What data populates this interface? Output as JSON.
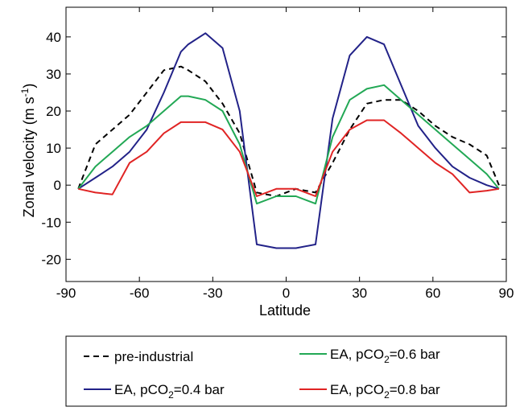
{
  "chart_data": {
    "type": "line",
    "xlabel": "Latitude",
    "ylabel_main": "Zonal velocity (m s",
    "ylabel_sup": "-1",
    "ylabel_close": ")",
    "xlim": [
      -90,
      90
    ],
    "ylim": [
      -26,
      48
    ],
    "xticks": [
      -90,
      -60,
      -30,
      0,
      30,
      60,
      90
    ],
    "yticks": [
      -20,
      -10,
      0,
      10,
      20,
      30,
      40
    ],
    "grid": false,
    "legend_position": "below",
    "series": [
      {
        "name": "pre-industrial",
        "color": "#000000",
        "dash": true,
        "x": [
          -85,
          -78,
          -71,
          -64,
          -57,
          -50,
          -43,
          -40,
          -33,
          -26,
          -19,
          -12,
          -4,
          4,
          12,
          19,
          26,
          33,
          40,
          47,
          54,
          61,
          68,
          75,
          82,
          87
        ],
        "y": [
          -1,
          11,
          15,
          19,
          25,
          31,
          32,
          31,
          28,
          22,
          14,
          -2,
          -3,
          -1,
          -2,
          6,
          15,
          22,
          23,
          23,
          20,
          16,
          13,
          11,
          8,
          0
        ]
      },
      {
        "name": "EA, pCO2=0.4 bar",
        "name_prefix": "EA, pCO",
        "name_sub": "2",
        "name_suffix": "=0.4 bar",
        "color": "#222288",
        "dash": false,
        "x": [
          -85,
          -78,
          -71,
          -64,
          -57,
          -50,
          -43,
          -40,
          -33,
          -26,
          -19,
          -12,
          -4,
          4,
          12,
          19,
          26,
          33,
          40,
          47,
          54,
          61,
          68,
          75,
          82,
          87
        ],
        "y": [
          -1,
          2,
          5,
          9,
          15,
          25,
          36,
          38,
          41,
          37,
          20,
          -16,
          -17,
          -17,
          -16,
          18,
          35,
          40,
          38,
          27,
          16,
          10,
          5,
          2,
          0,
          -1
        ]
      },
      {
        "name": "EA, pCO2=0.6 bar",
        "name_prefix": "EA, pCO",
        "name_sub": "2",
        "name_suffix": "=0.6 bar",
        "color": "#22a855",
        "dash": false,
        "x": [
          -85,
          -78,
          -71,
          -64,
          -57,
          -50,
          -43,
          -40,
          -33,
          -26,
          -19,
          -12,
          -4,
          4,
          12,
          19,
          26,
          33,
          40,
          47,
          54,
          61,
          68,
          75,
          82,
          87
        ],
        "y": [
          -1,
          5,
          9,
          13,
          16,
          20,
          24,
          24,
          23,
          20,
          11,
          -5,
          -3,
          -3,
          -5,
          13,
          23,
          26,
          27,
          23,
          19,
          15,
          11,
          7,
          3,
          -1
        ]
      },
      {
        "name": "EA, pCO2=0.8 bar",
        "name_prefix": "EA, pCO",
        "name_sub": "2",
        "name_suffix": "=0.8 bar",
        "color": "#e02424",
        "dash": false,
        "x": [
          -85,
          -78,
          -71,
          -64,
          -57,
          -50,
          -43,
          -40,
          -33,
          -26,
          -19,
          -12,
          -4,
          4,
          12,
          19,
          26,
          33,
          40,
          47,
          54,
          61,
          68,
          75,
          82,
          87
        ],
        "y": [
          -1,
          -2,
          -2.5,
          6,
          9,
          14,
          17,
          17,
          17,
          15,
          9,
          -3,
          -1,
          -1,
          -3,
          9,
          15,
          17.5,
          17.5,
          14,
          10,
          6,
          3,
          -2,
          -1.5,
          -1
        ]
      }
    ],
    "legend_order": [
      0,
      2,
      1,
      3
    ]
  }
}
